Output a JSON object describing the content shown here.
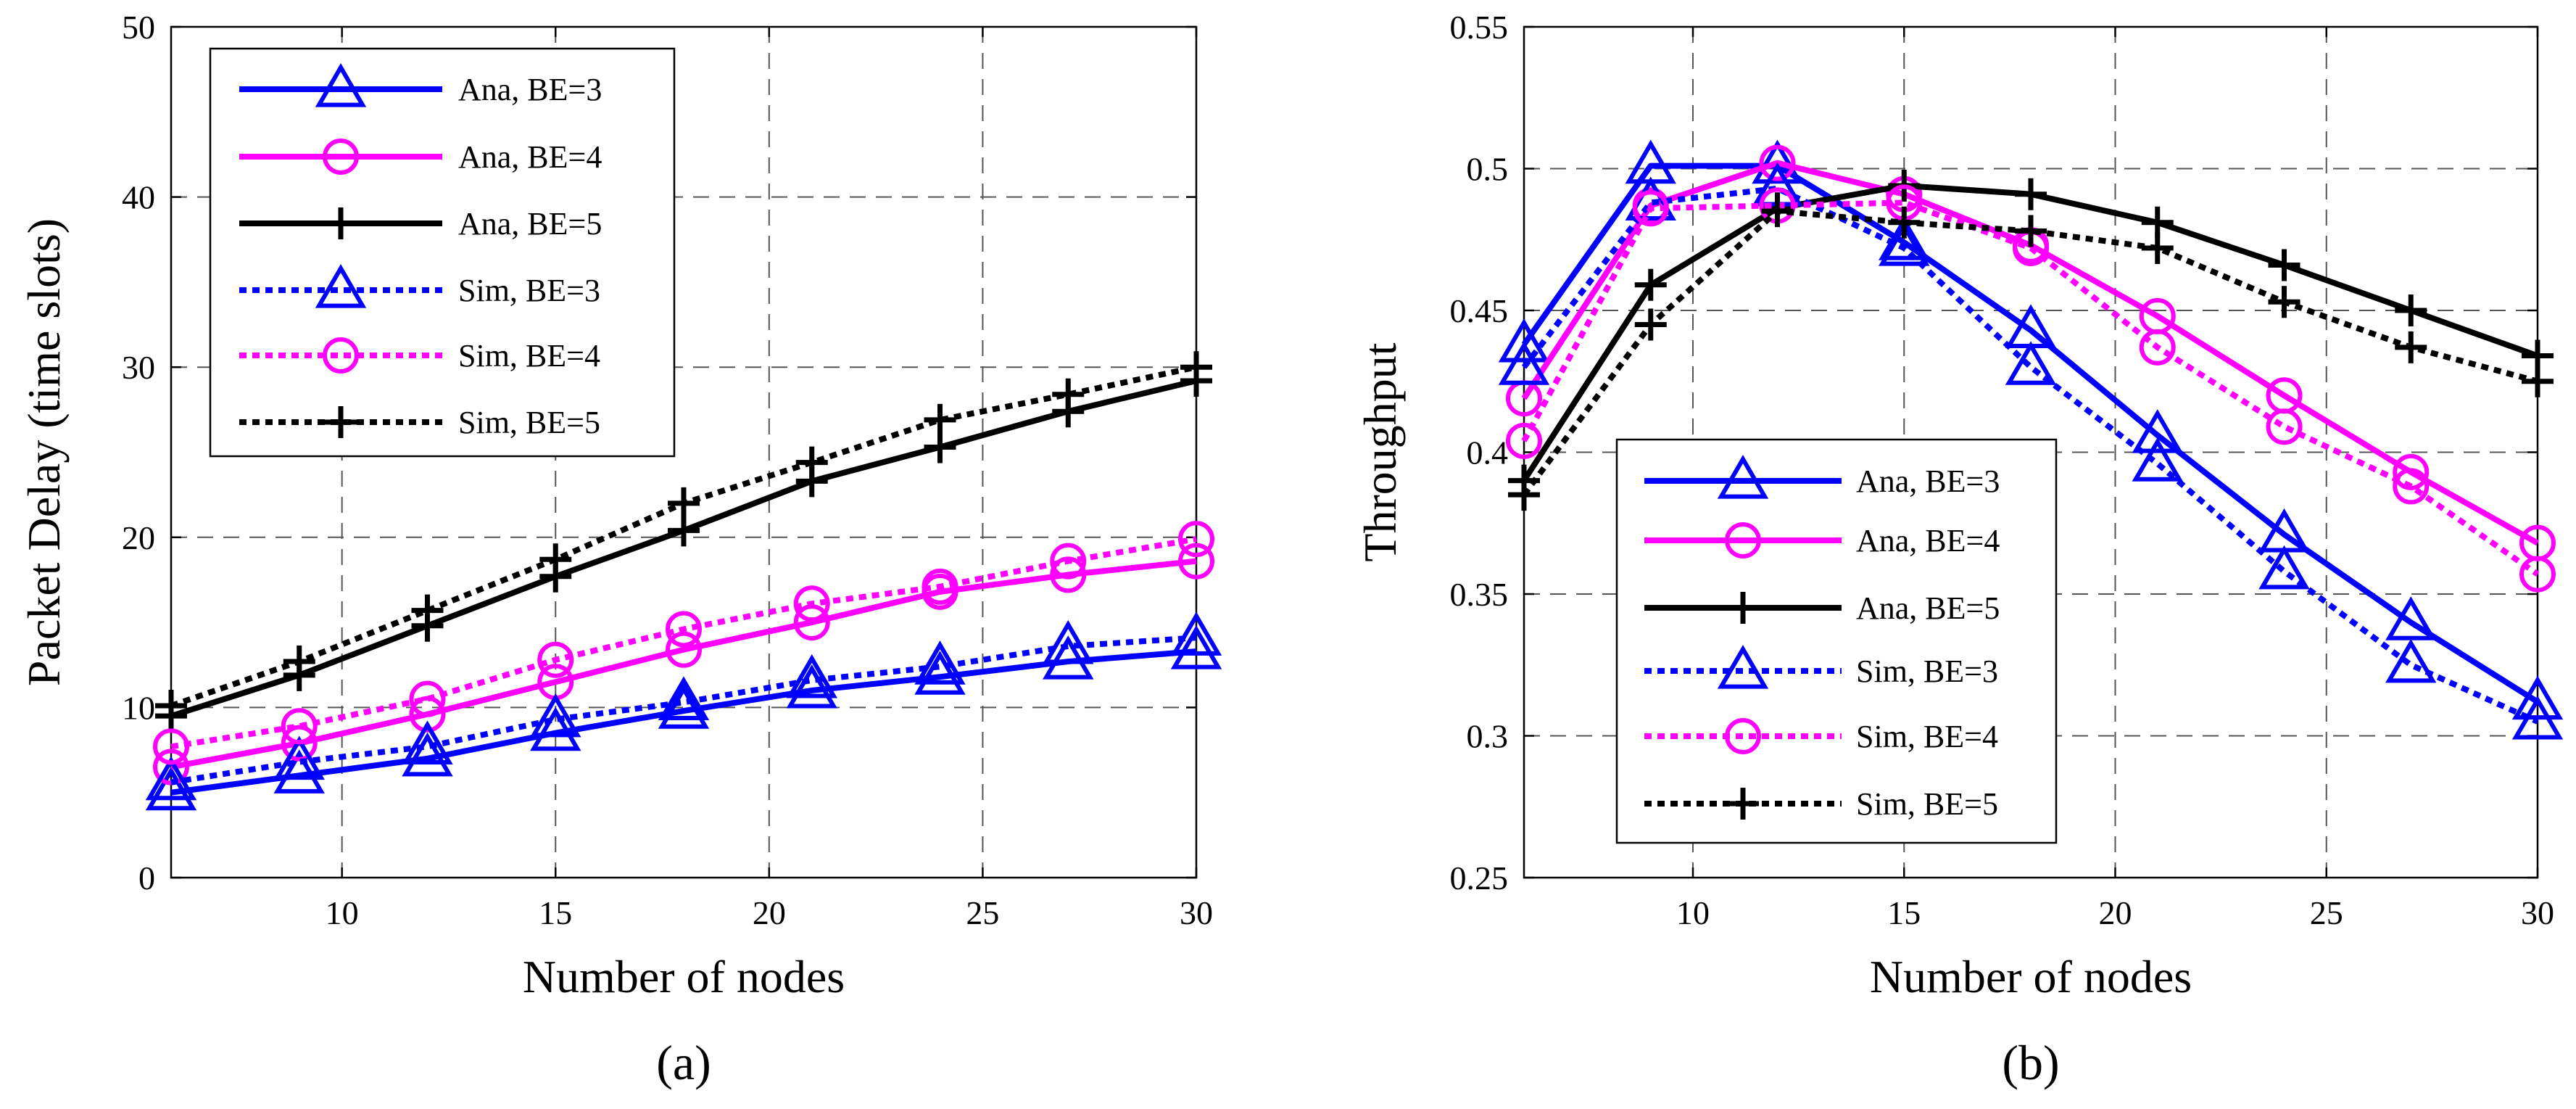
{
  "chart_data": [
    {
      "type": "line",
      "panel_label": "(a)",
      "title": "",
      "xlabel": "Number of nodes",
      "ylabel": "Packet Delay (time slots)",
      "xlim": [
        6,
        30
      ],
      "ylim": [
        0,
        50
      ],
      "xticks": [
        10,
        15,
        20,
        25,
        30
      ],
      "yticks": [
        0,
        10,
        20,
        30,
        40,
        50
      ],
      "grid": true,
      "legend_position": "top-left",
      "x": [
        6,
        9,
        12,
        15,
        18,
        21,
        24,
        27,
        30
      ],
      "series": [
        {
          "name": "Ana, BE=3",
          "color": "#0000ff",
          "style": "solid",
          "marker": "triangle",
          "values": [
            5.0,
            6.0,
            7.0,
            8.5,
            9.8,
            11.0,
            11.8,
            12.7,
            13.3
          ]
        },
        {
          "name": "Ana, BE=4",
          "color": "#ff00ff",
          "style": "solid",
          "marker": "circle",
          "values": [
            6.5,
            7.9,
            9.6,
            11.5,
            13.4,
            15.0,
            16.8,
            17.8,
            18.6
          ]
        },
        {
          "name": "Ana, BE=5",
          "color": "#000000",
          "style": "solid",
          "marker": "plus",
          "values": [
            9.5,
            11.9,
            14.8,
            17.7,
            20.4,
            23.3,
            25.3,
            27.4,
            29.2
          ]
        },
        {
          "name": "Sim, BE=3",
          "color": "#0000ff",
          "style": "dotted",
          "marker": "triangle",
          "values": [
            5.6,
            6.8,
            7.7,
            9.3,
            10.3,
            11.6,
            12.4,
            13.6,
            14.1
          ]
        },
        {
          "name": "Sim, BE=4",
          "color": "#ff00ff",
          "style": "dotted",
          "marker": "circle",
          "values": [
            7.7,
            8.9,
            10.5,
            12.8,
            14.6,
            16.1,
            17.1,
            18.6,
            19.9
          ]
        },
        {
          "name": "Sim, BE=5",
          "color": "#000000",
          "style": "dotted",
          "marker": "plus",
          "values": [
            10.1,
            12.7,
            15.7,
            18.7,
            22.0,
            24.4,
            26.9,
            28.4,
            30.0
          ]
        }
      ]
    },
    {
      "type": "line",
      "panel_label": "(b)",
      "title": "",
      "xlabel": "Number of nodes",
      "ylabel": "Throughput",
      "xlim": [
        6,
        30
      ],
      "ylim": [
        0.25,
        0.55
      ],
      "xticks": [
        10,
        15,
        20,
        25,
        30
      ],
      "yticks": [
        0.25,
        0.3,
        0.35,
        0.4,
        0.45,
        0.5,
        0.55
      ],
      "grid": true,
      "legend_position": "bottom-center",
      "x": [
        6,
        9,
        12,
        15,
        18,
        21,
        24,
        27,
        30
      ],
      "series": [
        {
          "name": "Ana, BE=3",
          "color": "#0000ff",
          "style": "solid",
          "marker": "triangle",
          "values": [
            0.438,
            0.501,
            0.501,
            0.474,
            0.443,
            0.406,
            0.371,
            0.34,
            0.312
          ]
        },
        {
          "name": "Ana, BE=4",
          "color": "#ff00ff",
          "style": "solid",
          "marker": "circle",
          "values": [
            0.419,
            0.487,
            0.502,
            0.491,
            0.473,
            0.448,
            0.42,
            0.393,
            0.368
          ]
        },
        {
          "name": "Ana, BE=5",
          "color": "#000000",
          "style": "solid",
          "marker": "plus",
          "values": [
            0.39,
            0.459,
            0.486,
            0.494,
            0.491,
            0.481,
            0.466,
            0.45,
            0.434
          ]
        },
        {
          "name": "Sim, BE=3",
          "color": "#0000ff",
          "style": "dotted",
          "marker": "triangle",
          "values": [
            0.43,
            0.488,
            0.493,
            0.472,
            0.43,
            0.396,
            0.358,
            0.325,
            0.305
          ]
        },
        {
          "name": "Sim, BE=4",
          "color": "#ff00ff",
          "style": "dotted",
          "marker": "circle",
          "values": [
            0.404,
            0.486,
            0.487,
            0.488,
            0.472,
            0.437,
            0.409,
            0.388,
            0.357
          ]
        },
        {
          "name": "Sim, BE=5",
          "color": "#000000",
          "style": "dotted",
          "marker": "plus",
          "values": [
            0.385,
            0.445,
            0.485,
            0.481,
            0.478,
            0.472,
            0.453,
            0.437,
            0.425
          ]
        }
      ]
    }
  ]
}
